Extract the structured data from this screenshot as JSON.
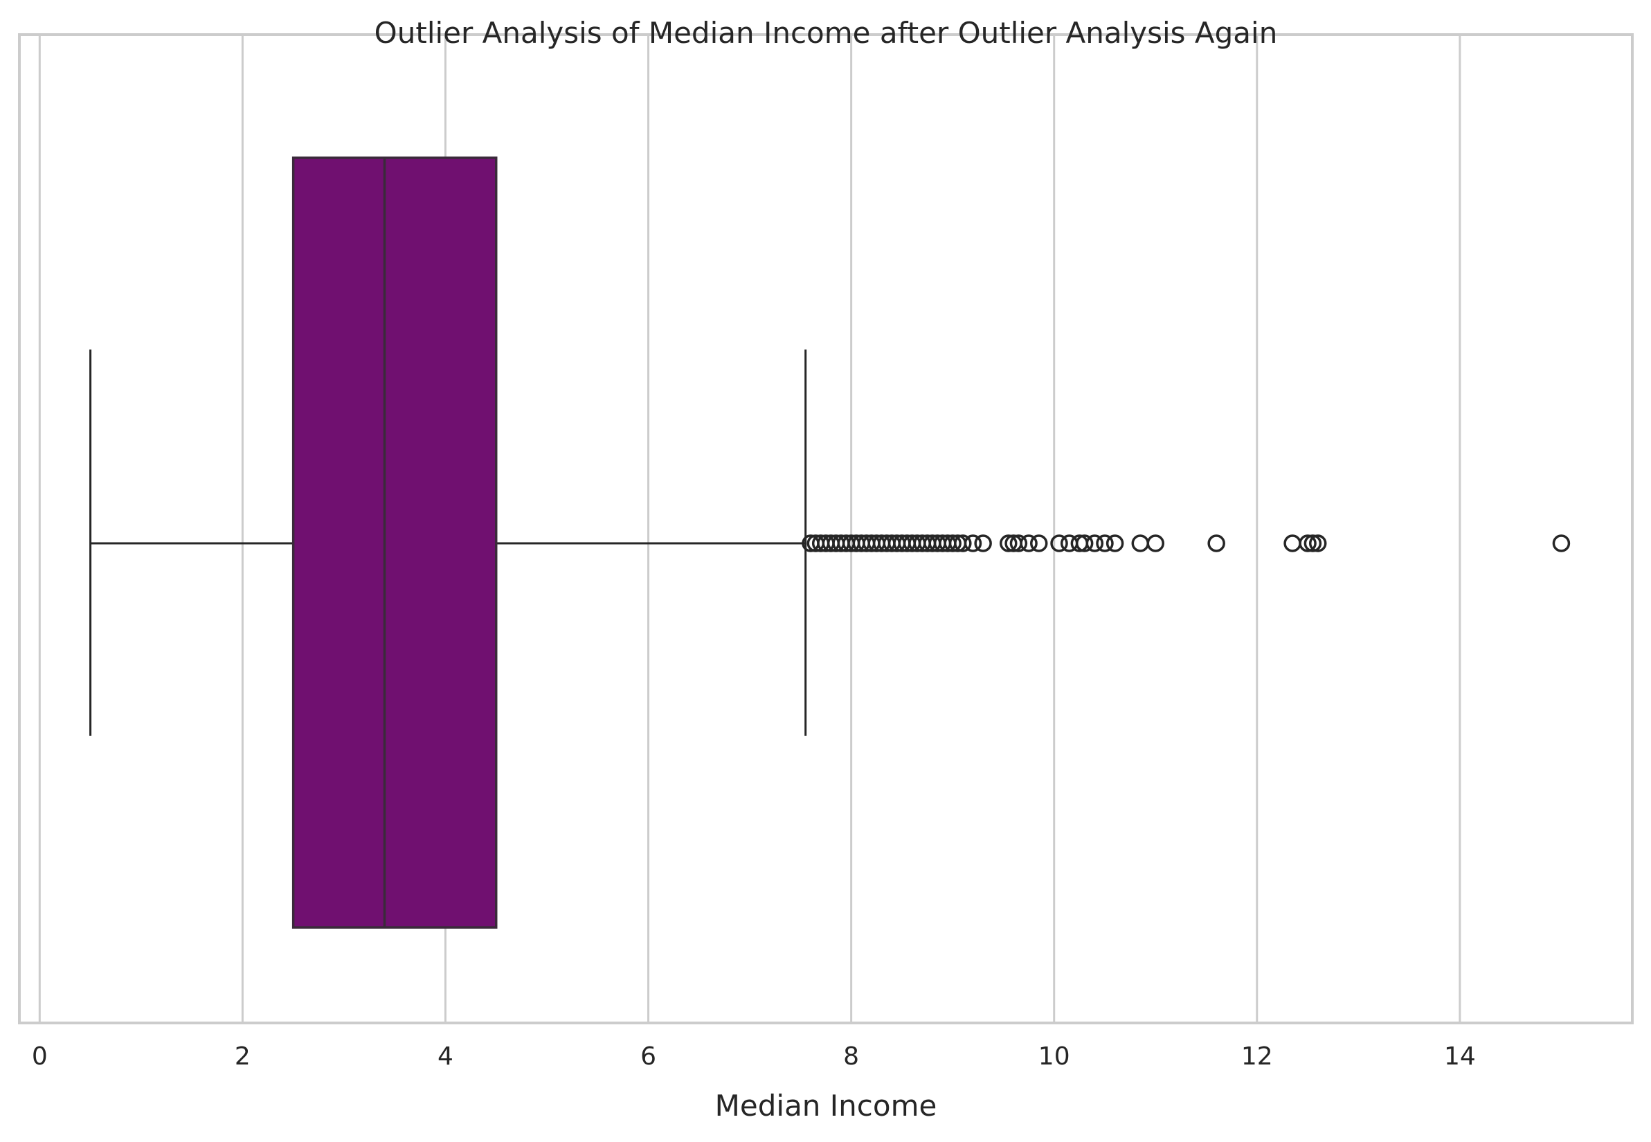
{
  "chart_data": {
    "type": "box",
    "title": "Outlier Analysis of Median Income after Outlier Analysis Again",
    "xlabel": "Median Income",
    "ylabel": "",
    "xlim": [
      -0.2,
      15.7
    ],
    "xticks": [
      0,
      2,
      4,
      6,
      8,
      10,
      12,
      14
    ],
    "xtick_labels": [
      "0",
      "2",
      "4",
      "6",
      "8",
      "10",
      "12",
      "14"
    ],
    "orientation": "horizontal",
    "grid": "vertical",
    "box_color": "#701070",
    "box": {
      "whisker_low": 0.5,
      "q1": 2.5,
      "median": 3.4,
      "q3": 4.5,
      "whisker_high": 7.55
    },
    "outliers": [
      7.6,
      7.65,
      7.7,
      7.75,
      7.8,
      7.85,
      7.9,
      7.95,
      8.0,
      8.05,
      8.1,
      8.15,
      8.2,
      8.25,
      8.3,
      8.35,
      8.4,
      8.45,
      8.5,
      8.55,
      8.6,
      8.65,
      8.7,
      8.75,
      8.8,
      8.85,
      8.9,
      8.95,
      9.0,
      9.05,
      9.1,
      9.2,
      9.3,
      9.55,
      9.6,
      9.65,
      9.75,
      9.85,
      10.05,
      10.15,
      10.25,
      10.3,
      10.4,
      10.5,
      10.6,
      10.85,
      11.0,
      11.6,
      12.35,
      12.5,
      12.55,
      12.6,
      15.0
    ]
  }
}
